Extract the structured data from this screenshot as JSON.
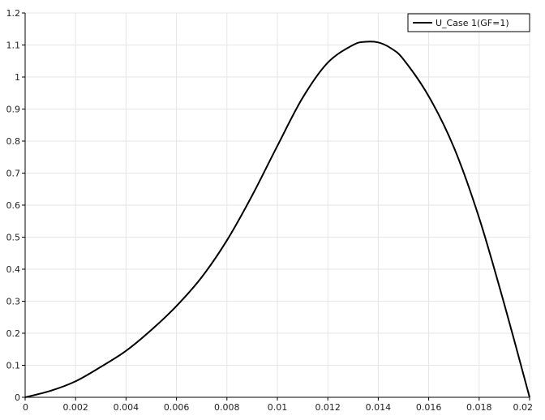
{
  "chart_data": {
    "type": "line",
    "xlim": [
      0,
      0.02
    ],
    "ylim": [
      0,
      1.2
    ],
    "grid": true,
    "legend_position": "top-right",
    "x_ticks": [
      "0",
      "0.002",
      "0.004",
      "0.006",
      "0.008",
      "0.01",
      "0.012",
      "0.014",
      "0.016",
      "0.018",
      "0.02"
    ],
    "y_ticks": [
      "0",
      "0.1",
      "0.2",
      "0.3",
      "0.4",
      "0.5",
      "0.6",
      "0.7",
      "0.8",
      "0.9",
      "1",
      "1.1",
      "1.2"
    ],
    "series": [
      {
        "name": "U_Case 1(GF=1)",
        "color": "#000000",
        "x": [
          0,
          0.001,
          0.002,
          0.003,
          0.004,
          0.005,
          0.006,
          0.007,
          0.008,
          0.009,
          0.01,
          0.011,
          0.012,
          0.013,
          0.0135,
          0.014,
          0.0145,
          0.015,
          0.016,
          0.017,
          0.018,
          0.019,
          0.02
        ],
        "y": [
          0,
          0.02,
          0.05,
          0.095,
          0.145,
          0.21,
          0.285,
          0.375,
          0.49,
          0.63,
          0.785,
          0.935,
          1.045,
          1.1,
          1.11,
          1.108,
          1.09,
          1.055,
          0.94,
          0.78,
          0.56,
          0.29,
          0.0
        ]
      }
    ]
  }
}
